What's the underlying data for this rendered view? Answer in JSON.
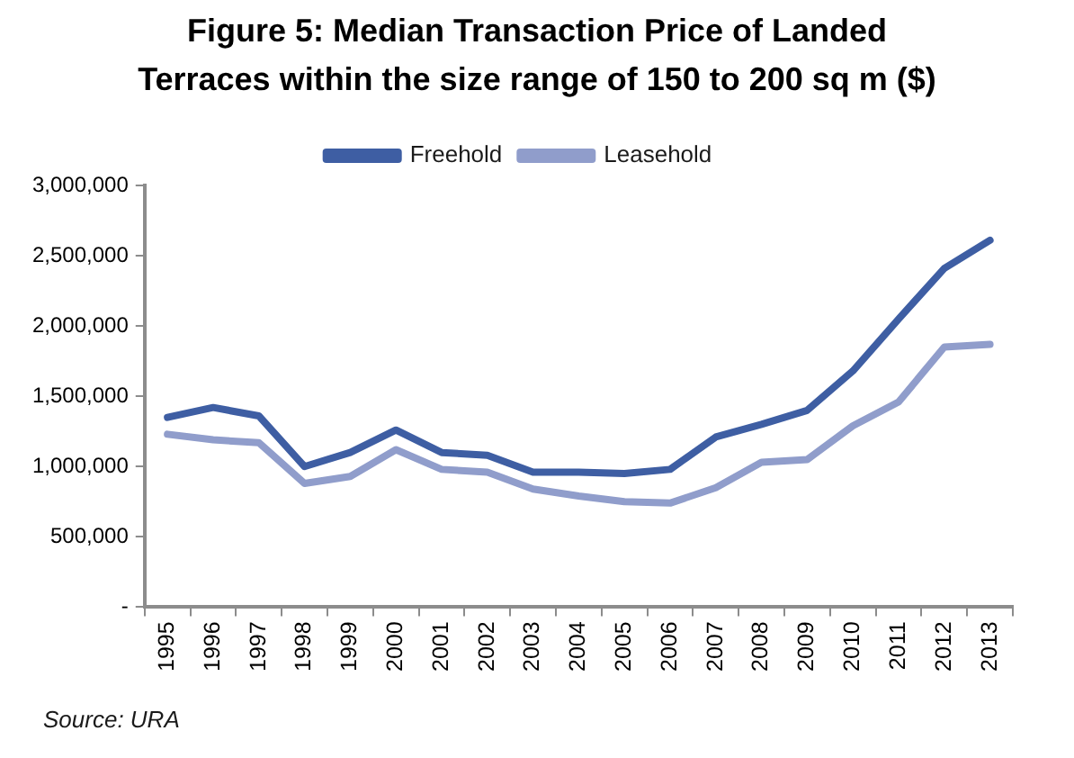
{
  "chart_data": {
    "type": "line",
    "title": "Figure 5: Median Transaction Price of Landed Terraces within the size range of 150 to 200 sq m ($)",
    "categories": [
      "1995",
      "1996",
      "1997",
      "1998",
      "1999",
      "2000",
      "2001",
      "2002",
      "2003",
      "2004",
      "2005",
      "2006",
      "2007",
      "2008",
      "2009",
      "2010",
      "2011",
      "2012",
      "2013"
    ],
    "series": [
      {
        "name": "Freehold",
        "color": "#3e5ea3",
        "values": [
          1350000,
          1420000,
          1360000,
          1000000,
          1100000,
          1260000,
          1100000,
          1080000,
          960000,
          960000,
          950000,
          980000,
          1210000,
          1300000,
          1400000,
          1680000,
          2050000,
          2410000,
          2610000
        ]
      },
      {
        "name": "Leasehold",
        "color": "#909dcb",
        "values": [
          1230000,
          1190000,
          1170000,
          880000,
          930000,
          1120000,
          980000,
          960000,
          840000,
          790000,
          750000,
          740000,
          850000,
          1030000,
          1050000,
          1290000,
          1460000,
          1850000,
          1870000
        ]
      }
    ],
    "ylim": [
      0,
      3000000
    ],
    "yticks": [
      {
        "value": 0,
        "label": "-"
      },
      {
        "value": 500000,
        "label": "500,000"
      },
      {
        "value": 1000000,
        "label": "1,000,000"
      },
      {
        "value": 1500000,
        "label": "1,500,000"
      },
      {
        "value": 2000000,
        "label": "2,000,000"
      },
      {
        "value": 2500000,
        "label": "2,500,000"
      },
      {
        "value": 3000000,
        "label": "3,000,000"
      }
    ],
    "legend": "top",
    "annotations": [
      "Source: URA"
    ]
  }
}
